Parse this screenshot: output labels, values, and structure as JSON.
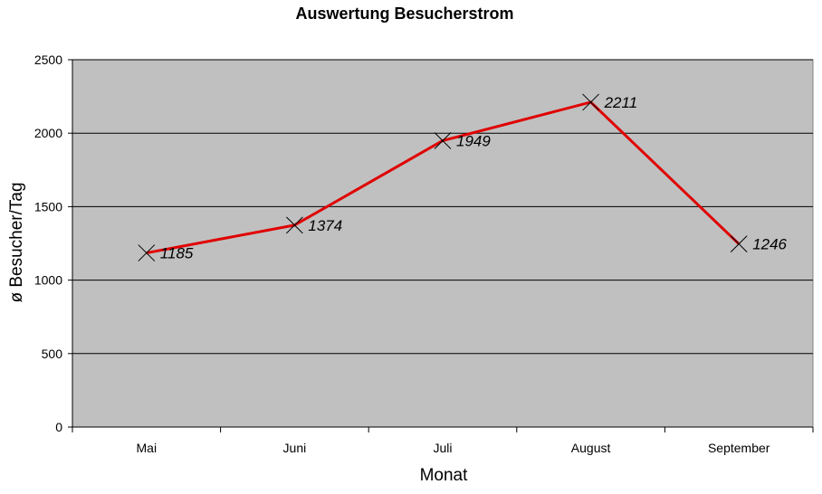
{
  "chart_data": {
    "type": "line",
    "title": "Auswertung Besucherstrom",
    "xlabel": "Monat",
    "ylabel": "ø Besucher/Tag",
    "categories": [
      "Mai",
      "Juni",
      "Juli",
      "August",
      "September"
    ],
    "series": [
      {
        "values": [
          1185,
          1374,
          1949,
          2211,
          1246
        ],
        "color": "#e00000",
        "marker": "x"
      }
    ],
    "ylim": [
      0,
      2500
    ],
    "yticks": [
      0,
      500,
      1000,
      1500,
      2000,
      2500
    ],
    "grid": true,
    "plot_background": "#c0c0c0",
    "data_labels": true
  }
}
